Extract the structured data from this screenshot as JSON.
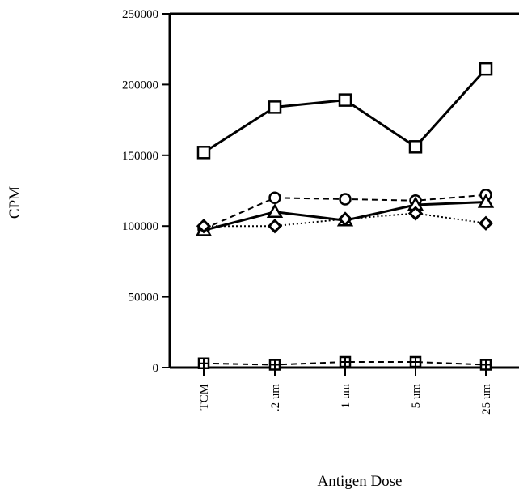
{
  "chart_data": {
    "type": "line",
    "title": "",
    "xlabel": "Antigen Dose",
    "ylabel": "CPM",
    "categories": [
      "TCM",
      ".2 um",
      "1 um",
      "5 um",
      "25 um"
    ],
    "ylim": [
      0,
      250000
    ],
    "yticks": [
      "0",
      "50000",
      "100000",
      "150000",
      "200000",
      "250000"
    ],
    "ytick_values": [
      0,
      50000,
      100000,
      150000,
      200000,
      250000
    ],
    "grid": false,
    "legend": "none",
    "series": [
      {
        "marker": "square",
        "line_style": "solid",
        "line_width": 3,
        "values": [
          152000,
          184000,
          189000,
          156000,
          211000
        ]
      },
      {
        "marker": "circle",
        "line_style": "dashed",
        "line_width": 2,
        "values": [
          98000,
          120000,
          119000,
          118000,
          122000
        ]
      },
      {
        "marker": "triangle",
        "line_style": "solid",
        "line_width": 3,
        "values": [
          97000,
          110000,
          104000,
          115000,
          117000
        ]
      },
      {
        "marker": "diamond",
        "line_style": "dotted",
        "line_width": 2,
        "values": [
          100000,
          100000,
          105000,
          109000,
          102000
        ]
      },
      {
        "marker": "crossed-square",
        "line_style": "dashed",
        "line_width": 2,
        "values": [
          3000,
          2000,
          4000,
          4000,
          2000
        ]
      }
    ],
    "colors": {
      "ink": "#000000",
      "marker_fill": "#ffffff",
      "background": "#ffffff"
    }
  }
}
